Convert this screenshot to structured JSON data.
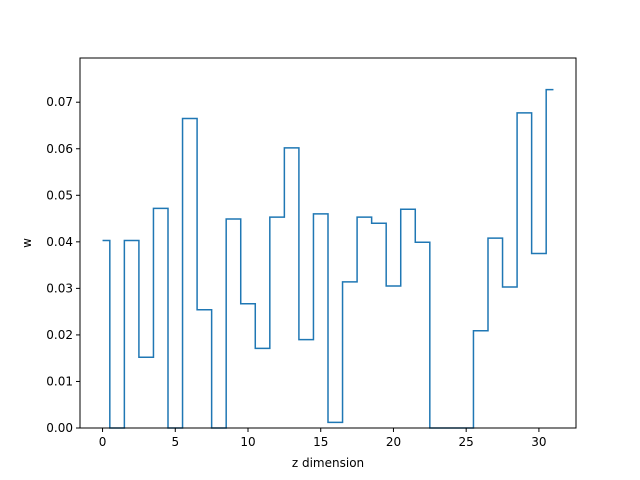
{
  "chart_data": {
    "type": "line",
    "drawstyle": "steps-mid",
    "title": "",
    "xlabel": "z dimension",
    "ylabel": "w",
    "xlim": [
      -1.55,
      32.55
    ],
    "ylim": [
      0,
      0.0795
    ],
    "xticks": [
      0,
      5,
      10,
      15,
      20,
      25,
      30
    ],
    "xtick_labels": [
      "0",
      "5",
      "10",
      "15",
      "20",
      "25",
      "30"
    ],
    "yticks": [
      0.0,
      0.01,
      0.02,
      0.03,
      0.04,
      0.05,
      0.06,
      0.07
    ],
    "ytick_labels": [
      "0.00",
      "0.01",
      "0.02",
      "0.03",
      "0.04",
      "0.05",
      "0.06",
      "0.07"
    ],
    "grid": false,
    "series": [
      {
        "color": "#1f77b4",
        "x": [
          0,
          1,
          2,
          3,
          4,
          5,
          6,
          7,
          8,
          9,
          10,
          11,
          12,
          13,
          14,
          15,
          16,
          17,
          18,
          19,
          20,
          21,
          22,
          23,
          24,
          25,
          26,
          27,
          28,
          29,
          30,
          31
        ],
        "y": [
          0.0403,
          0.0,
          0.0403,
          0.0152,
          0.0472,
          0.0,
          0.0665,
          0.0254,
          0.0,
          0.0449,
          0.0267,
          0.0171,
          0.0453,
          0.0602,
          0.019,
          0.046,
          0.0012,
          0.0314,
          0.0453,
          0.044,
          0.0305,
          0.047,
          0.0399,
          0.0,
          0.0,
          0.0,
          0.0209,
          0.0408,
          0.0303,
          0.0677,
          0.0375,
          0.0727
        ]
      }
    ]
  }
}
